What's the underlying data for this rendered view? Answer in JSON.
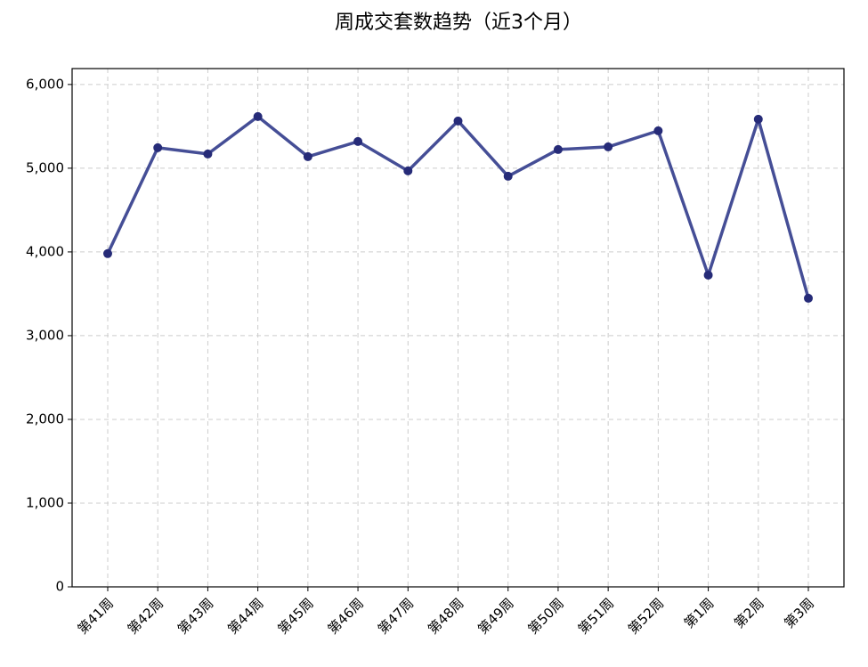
{
  "chart_data": {
    "type": "line",
    "title": "周成交套数趋势（近3个月）",
    "categories": [
      "第41周",
      "第42周",
      "第43周",
      "第44周",
      "第45周",
      "第46周",
      "第47周",
      "第48周",
      "第49周",
      "第50周",
      "第51周",
      "第52周",
      "第1周",
      "第2周",
      "第3周"
    ],
    "series": [
      {
        "color": "#3b4590",
        "values": [
          3980,
          5245,
          5170,
          5617,
          5138,
          5319,
          4968,
          5564,
          4904,
          5223,
          5255,
          5447,
          3723,
          5585,
          3447
        ]
      }
    ],
    "ylim": [
      0,
      6190
    ],
    "yticks": [
      0,
      {
        "value": 1000,
        "label": "1,000"
      },
      {
        "value": 2000,
        "label": "2,000"
      },
      {
        "value": 3000,
        "label": "3,000"
      },
      {
        "value": 4000,
        "label": "4,000"
      },
      {
        "value": 5000,
        "label": "5,000"
      },
      {
        "value": 6000,
        "label": "6,000"
      }
    ],
    "grid": true
  }
}
